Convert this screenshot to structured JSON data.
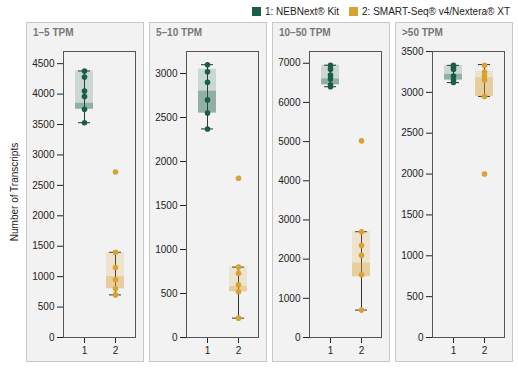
{
  "chart_data": {
    "type": "box",
    "y_label": "Number of Transcripts",
    "legend": "top-right",
    "categories": [
      "1",
      "2"
    ],
    "series": [
      {
        "name": "1: NEBNext® Kit",
        "color": "#1b5e48"
      },
      {
        "name": "2: SMART-Seq® v4/Nextera® XT",
        "color": "#d9a233"
      }
    ],
    "panels": [
      {
        "title": "1–5 TPM",
        "ylim": [
          0,
          4700
        ],
        "yticks": [
          0,
          500,
          1000,
          1500,
          2000,
          2500,
          3000,
          3500,
          4000,
          4500
        ],
        "boxes": [
          {
            "points": [
              4380,
              4280,
              4050,
              3960,
              3750,
              3530
            ],
            "q1": 3750,
            "median": 3850,
            "q3": 4380,
            "whisker_low": 3530,
            "whisker_high": 4380
          },
          {
            "points": [
              2720,
              1400,
              1150,
              950,
              800,
              700
            ],
            "q1": 800,
            "median": 1000,
            "q3": 1400,
            "whisker_low": 700,
            "whisker_high": 1400
          }
        ]
      },
      {
        "title": "5–10 TPM",
        "ylim": [
          0,
          3250
        ],
        "yticks": [
          0,
          500,
          1000,
          1500,
          2000,
          2500,
          3000
        ],
        "boxes": [
          {
            "points": [
              3100,
              3020,
              2900,
              2700,
              2550,
              2370
            ],
            "q1": 2550,
            "median": 2800,
            "q3": 3050,
            "whisker_low": 2370,
            "whisker_high": 3100
          },
          {
            "points": [
              1810,
              800,
              730,
              600,
              520,
              220
            ],
            "q1": 520,
            "median": 580,
            "q3": 800,
            "whisker_low": 220,
            "whisker_high": 800
          }
        ]
      },
      {
        "title": "10–50 TPM",
        "ylim": [
          0,
          7300
        ],
        "yticks": [
          0,
          1000,
          2000,
          3000,
          4000,
          5000,
          6000,
          7000
        ],
        "boxes": [
          {
            "points": [
              6950,
              6850,
              6700,
              6600,
              6450,
              6400
            ],
            "q1": 6450,
            "median": 6600,
            "q3": 6950,
            "whisker_low": 6400,
            "whisker_high": 6950
          },
          {
            "points": [
              5020,
              2700,
              2350,
              2100,
              1600,
              700
            ],
            "q1": 1550,
            "median": 1900,
            "q3": 2700,
            "whisker_low": 700,
            "whisker_high": 2700
          }
        ]
      },
      {
        "title": ">50 TPM",
        "ylim": [
          0,
          3500
        ],
        "yticks": [
          0,
          500,
          1000,
          1500,
          2000,
          2500,
          3000,
          3500
        ],
        "boxes": [
          {
            "points": [
              3330,
              3310,
              3280,
              3200,
              3150,
              3120
            ],
            "q1": 3150,
            "median": 3220,
            "q3": 3330,
            "whisker_low": 3120,
            "whisker_high": 3330
          },
          {
            "points": [
              3330,
              3250,
              3200,
              3150,
              2950,
              2000
            ],
            "q1": 2950,
            "median": 3180,
            "q3": 3260,
            "whisker_low": 2950,
            "whisker_high": 3340
          }
        ]
      }
    ]
  }
}
